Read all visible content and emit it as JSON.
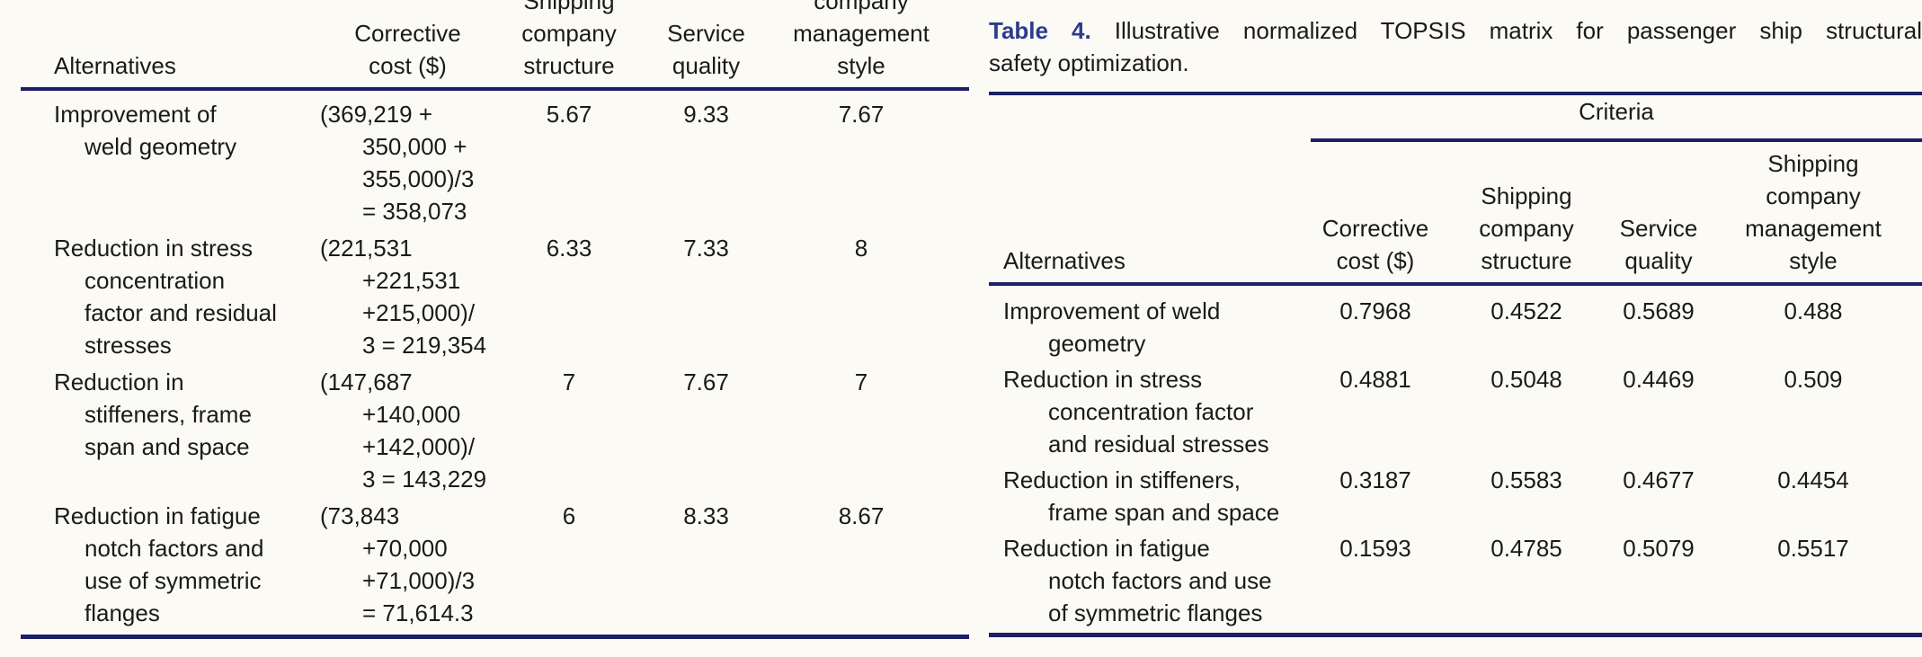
{
  "page": {
    "colors": {
      "background": "#fbfaf5",
      "text": "#1a1a1a",
      "rule_navy": "#1c1f66",
      "caption_navy": "#2d3a8f"
    }
  },
  "left_table": {
    "headers": {
      "alternatives": "Alternatives",
      "corrective_cost": "Corrective\ncost ($)",
      "company_structure": "Shipping\ncompany\nstructure",
      "service_quality": "Service\nquality",
      "management_style": "company\nmanagement\nstyle"
    },
    "rows": [
      {
        "alternative": "Improvement of\nweld geometry",
        "cost": "(369,219 +\n350,000 +\n355,000)/3\n= 358,073",
        "structure": "5.67",
        "quality": "9.33",
        "style": "7.67"
      },
      {
        "alternative": "Reduction in stress\nconcentration\nfactor and residual\nstresses",
        "cost": "(221,531\n+221,531\n+215,000)/\n3 = 219,354",
        "structure": "6.33",
        "quality": "7.33",
        "style": "8"
      },
      {
        "alternative": "Reduction in\nstiffeners, frame\nspan and space",
        "cost": "(147,687\n+140,000\n+142,000)/\n3 = 143,229",
        "structure": "7",
        "quality": "7.67",
        "style": "7"
      },
      {
        "alternative": "Reduction in fatigue\nnotch factors and\nuse of symmetric\nflanges",
        "cost": "(73,843\n+70,000\n+71,000)/3\n= 71,614.3",
        "structure": "6",
        "quality": "8.33",
        "style": "8.67"
      }
    ]
  },
  "right_table": {
    "caption": {
      "label": "Table 4.",
      "line1": "Illustrative normalized TOPSIS matrix for passenger ship structural",
      "line2": "safety optimization."
    },
    "criteria_label": "Criteria",
    "headers": {
      "alternatives": "Alternatives",
      "corrective_cost": "Corrective\ncost ($)",
      "company_structure": "Shipping\ncompany\nstructure",
      "service_quality": "Service\nquality",
      "management_style": "Shipping\ncompany\nmanagement\nstyle"
    },
    "rows": [
      {
        "alternative": "Improvement of weld\ngeometry",
        "cost": "0.7968",
        "structure": "0.4522",
        "quality": "0.5689",
        "style": "0.488"
      },
      {
        "alternative": "Reduction in stress\nconcentration factor\nand residual stresses",
        "cost": "0.4881",
        "structure": "0.5048",
        "quality": "0.4469",
        "style": "0.509"
      },
      {
        "alternative": "Reduction in stiffeners,\nframe span and space",
        "cost": "0.3187",
        "structure": "0.5583",
        "quality": "0.4677",
        "style": "0.4454"
      },
      {
        "alternative": "Reduction in fatigue\nnotch factors and use\nof symmetric flanges",
        "cost": "0.1593",
        "structure": "0.4785",
        "quality": "0.5079",
        "style": "0.5517"
      }
    ]
  }
}
